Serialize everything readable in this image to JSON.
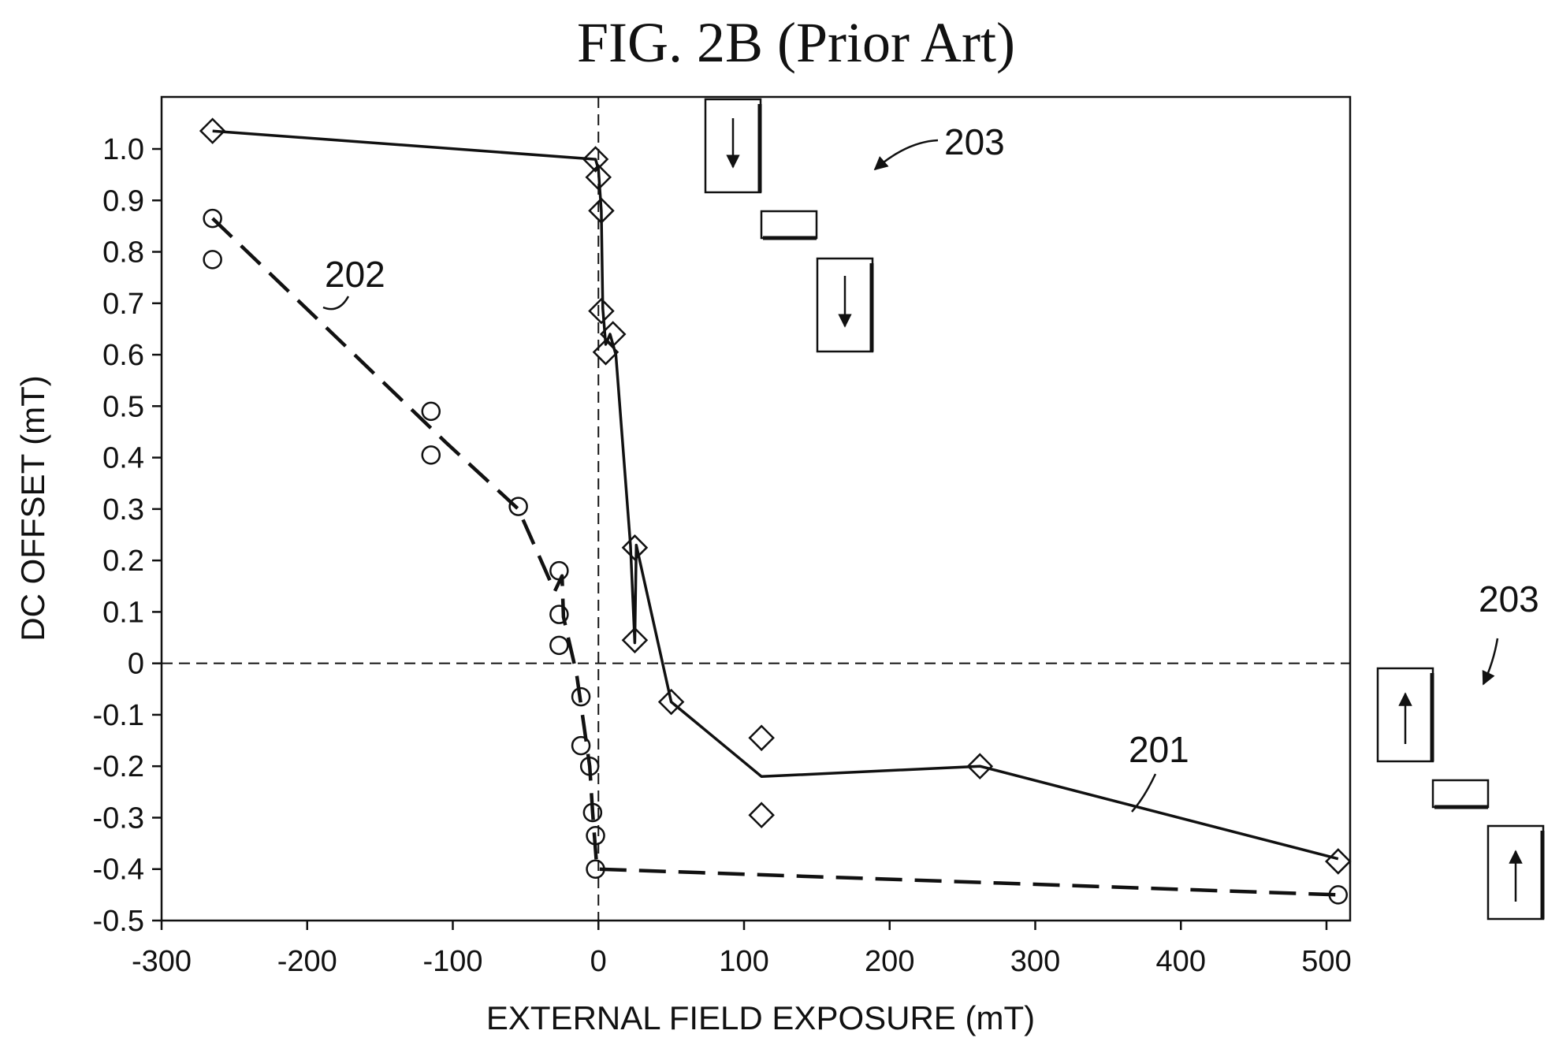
{
  "chart_data": {
    "type": "line",
    "title": "FIG. 2B (Prior Art)",
    "xlabel": "EXTERNAL FIELD EXPOSURE (mT)",
    "ylabel": "DC OFFSET (mT)",
    "xlim": [
      -300,
      540
    ],
    "ylim": [
      -0.5,
      1.1
    ],
    "x_ticks": [
      -300,
      -200,
      -100,
      0,
      100,
      200,
      300,
      400,
      500
    ],
    "x_tick_labels": [
      "-300",
      "-200",
      "-100",
      "0",
      "100",
      "200",
      "300",
      "400",
      "500"
    ],
    "y_ticks": [
      1.0,
      0.9,
      0.8,
      0.7,
      0.6,
      0.5,
      0.4,
      0.3,
      0.2,
      0.1,
      0,
      -0.1,
      -0.2,
      -0.3,
      -0.4,
      -0.5
    ],
    "y_tick_labels": [
      "1.0",
      "0.9",
      "0.8",
      "0.7",
      "0.6",
      "0.5",
      "0.4",
      "0.3",
      "0.2",
      "0.1",
      "0",
      "-0.1",
      "-0.2",
      "-0.3",
      "-0.4",
      "-0.5"
    ],
    "grid": false,
    "reference_lines": {
      "x": 0,
      "y": 0,
      "style": "dashed"
    },
    "series": [
      {
        "name": "201",
        "marker": "diamond",
        "line": "solid",
        "points": [
          [
            -265,
            1.035
          ],
          [
            -2,
            0.98
          ],
          [
            0,
            0.945
          ],
          [
            2,
            0.88
          ],
          [
            2,
            0.685
          ],
          [
            10,
            0.64
          ],
          [
            5,
            0.605
          ],
          [
            25,
            0.225
          ],
          [
            25,
            0.045
          ],
          [
            50,
            -0.075
          ],
          [
            112,
            -0.145
          ],
          [
            112,
            -0.295
          ],
          [
            262,
            -0.2
          ],
          [
            508,
            -0.385
          ]
        ],
        "line_path": [
          [
            -265,
            1.035
          ],
          [
            -2,
            0.98
          ],
          [
            0,
            0.96
          ],
          [
            2,
            0.88
          ],
          [
            3,
            0.69
          ],
          [
            5,
            0.62
          ],
          [
            8,
            0.64
          ],
          [
            12,
            0.6
          ],
          [
            22,
            0.23
          ],
          [
            25,
            0.04
          ],
          [
            26,
            0.23
          ],
          [
            50,
            -0.075
          ],
          [
            112,
            -0.22
          ],
          [
            262,
            -0.2
          ],
          [
            508,
            -0.38
          ]
        ]
      },
      {
        "name": "202",
        "marker": "circle",
        "line": "dashed",
        "points": [
          [
            -265,
            0.865
          ],
          [
            -265,
            0.785
          ],
          [
            -115,
            0.49
          ],
          [
            -115,
            0.405
          ],
          [
            -55,
            0.305
          ],
          [
            -27,
            0.18
          ],
          [
            -27,
            0.095
          ],
          [
            -27,
            0.035
          ],
          [
            -12,
            -0.065
          ],
          [
            -12,
            -0.16
          ],
          [
            -6,
            -0.2
          ],
          [
            -4,
            -0.29
          ],
          [
            -2,
            -0.335
          ],
          [
            -2,
            -0.4
          ],
          [
            508,
            -0.45
          ]
        ],
        "line_path": [
          [
            -265,
            0.865
          ],
          [
            -105,
            0.43
          ],
          [
            -55,
            0.3
          ],
          [
            -30,
            0.14
          ],
          [
            -25,
            0.17
          ],
          [
            -24,
            0.09
          ],
          [
            -15,
            -0.02
          ],
          [
            -10,
            -0.12
          ],
          [
            -6,
            -0.2
          ],
          [
            -4,
            -0.29
          ],
          [
            -1,
            -0.4
          ],
          [
            508,
            -0.45
          ]
        ]
      }
    ],
    "annotations": [
      {
        "text": "201",
        "points_to_series": "201"
      },
      {
        "text": "202",
        "points_to_series": "202"
      },
      {
        "text": "203",
        "points_to": "upper domain sketch (arrows down)"
      },
      {
        "text": "203",
        "points_to": "lower domain sketch (arrows up)"
      }
    ]
  }
}
